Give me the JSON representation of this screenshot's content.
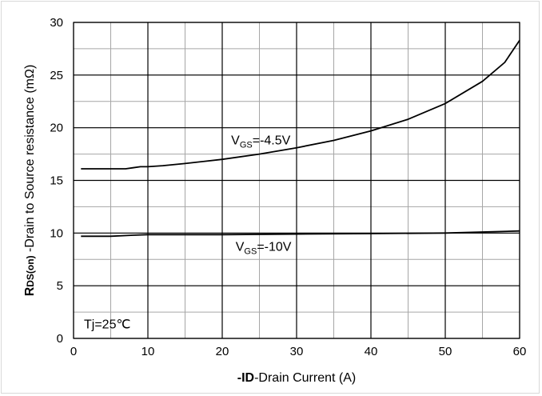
{
  "chart_data": {
    "type": "line",
    "xlabel": {
      "bold": "-ID",
      "rest": "-Drain Current (A)"
    },
    "ylabel": {
      "bold": "R",
      "sub": "DS(on)",
      "rest": " -Drain to Source resistance (mΩ)"
    },
    "xlim": [
      0,
      60
    ],
    "ylim": [
      0,
      30
    ],
    "x_major_ticks": [
      0,
      10,
      20,
      30,
      40,
      50,
      60
    ],
    "y_major_ticks": [
      0,
      5,
      10,
      15,
      20,
      25,
      30
    ],
    "x_minor_step": 5,
    "y_minor_step": 2.5,
    "grid": true,
    "series": [
      {
        "name": "VGS=-4.5V",
        "label_main": "V",
        "label_sub": "GS",
        "label_rest": "=-4.5V",
        "x": [
          1,
          4,
          7,
          8,
          9,
          10,
          12,
          15,
          20,
          25,
          30,
          35,
          40,
          45,
          50,
          55,
          58,
          60
        ],
        "y": [
          16.1,
          16.1,
          16.1,
          16.2,
          16.3,
          16.3,
          16.4,
          16.6,
          17.0,
          17.5,
          18.1,
          18.8,
          19.7,
          20.8,
          22.3,
          24.4,
          26.2,
          28.3
        ]
      },
      {
        "name": "VGS=-10V",
        "label_main": "V",
        "label_sub": "GS",
        "label_rest": "=-10V",
        "x": [
          1,
          5,
          8,
          10,
          20,
          30,
          40,
          50,
          60
        ],
        "y": [
          9.7,
          9.7,
          9.8,
          9.85,
          9.85,
          9.9,
          9.95,
          10.0,
          10.2
        ]
      }
    ],
    "annotation": "Tj=25℃"
  }
}
